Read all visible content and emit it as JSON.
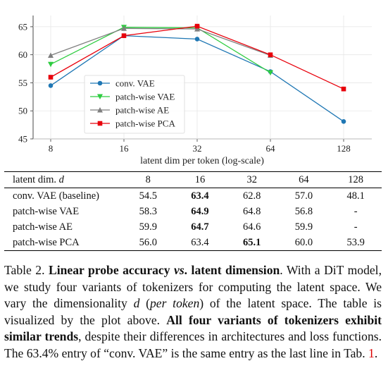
{
  "chart_data": {
    "type": "line",
    "x": [
      8,
      16,
      32,
      64,
      128
    ],
    "xscale": "log2",
    "xticks": [
      "8",
      "16",
      "32",
      "64",
      "128"
    ],
    "xlabel": "latent dim per token (log-scale)",
    "ylabel": "",
    "ylim": [
      45,
      67
    ],
    "yticks": [
      "45",
      "50",
      "55",
      "60",
      "65"
    ],
    "legend_position": "center-left",
    "series": [
      {
        "name": "conv. VAE",
        "color": "#1f77b4",
        "marker": "circle",
        "values": [
          54.5,
          63.4,
          62.8,
          57.0,
          48.1
        ]
      },
      {
        "name": "patch-wise VAE",
        "color": "#2ecc40",
        "marker": "triangle-down",
        "values": [
          58.3,
          64.9,
          64.8,
          56.8,
          null
        ]
      },
      {
        "name": "patch-wise AE",
        "color": "#7f7f7f",
        "marker": "triangle-up",
        "values": [
          59.9,
          64.7,
          64.6,
          59.9,
          null
        ]
      },
      {
        "name": "patch-wise PCA",
        "color": "#e8000b",
        "marker": "square",
        "values": [
          56.0,
          63.4,
          65.1,
          60.0,
          53.9
        ]
      }
    ]
  },
  "table": {
    "header_label": "latent dim.",
    "header_var": "d",
    "columns": [
      "8",
      "16",
      "32",
      "64",
      "128"
    ],
    "rows": [
      {
        "label": "conv. VAE (baseline)",
        "cells": [
          "54.5",
          "63.4",
          "62.8",
          "57.0",
          "48.1"
        ],
        "bold": [
          1
        ]
      },
      {
        "label": "patch-wise VAE",
        "cells": [
          "58.3",
          "64.9",
          "64.8",
          "56.8",
          "-"
        ],
        "bold": [
          1
        ]
      },
      {
        "label": "patch-wise AE",
        "cells": [
          "59.9",
          "64.7",
          "64.6",
          "59.9",
          "-"
        ],
        "bold": [
          1
        ]
      },
      {
        "label": "patch-wise PCA",
        "cells": [
          "56.0",
          "63.4",
          "65.1",
          "60.0",
          "53.9"
        ],
        "bold": [
          2
        ]
      }
    ]
  },
  "caption": {
    "label": "Table 2.",
    "title_part1": "Linear probe accuracy",
    "title_vs": "vs",
    "title_part2": ". latent dimension",
    "text1": ". With a DiT model, we study four variants of tokenizers for computing the latent space. We vary the dimensionality",
    "var": "d",
    "text2_open": "(",
    "per_token": "per token",
    "text2_close": ") of the latent space. The table is visualized by the plot above.",
    "bold_sentence": "All four variants of tokenizers exhibit similar trends",
    "text3": ", despite their differences in architectures and loss functions. The 63.4% entry of “conv. VAE” is the same entry as the last line in Tab.",
    "ref": "1",
    "end": "."
  }
}
